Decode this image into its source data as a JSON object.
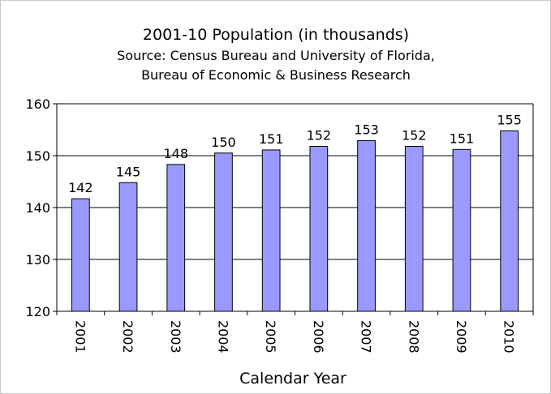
{
  "chart_data": {
    "type": "bar",
    "title": "2001-10 Population (in thousands)",
    "subtitle_lines": [
      "Source: Census Bureau and University of Florida,",
      "Bureau of Economic &  Business Research"
    ],
    "xlabel": "Calendar Year",
    "ylabel": "",
    "categories": [
      "2001",
      "2002",
      "2003",
      "2004",
      "2005",
      "2006",
      "2007",
      "2008",
      "2009",
      "2010"
    ],
    "values": [
      141.7,
      144.8,
      148.3,
      150.5,
      151.1,
      151.8,
      152.9,
      151.8,
      151.2,
      154.8
    ],
    "data_labels": [
      "142",
      "145",
      "148",
      "150",
      "151",
      "152",
      "153",
      "152",
      "151",
      "155"
    ],
    "ylim": [
      120,
      160
    ],
    "yticks": [
      120,
      130,
      140,
      150,
      160
    ],
    "grid": true,
    "legend": "none",
    "bar_color": "#9999ff",
    "bar_edge_color": "#000000"
  }
}
